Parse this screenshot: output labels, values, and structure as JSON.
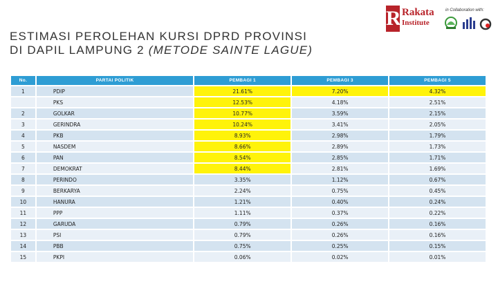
{
  "header": {
    "title_line1": "ESTIMASI PEROLEHAN KURSI DPRD PROVINSI",
    "title_line2": "DI DAPIL LAMPUNG 2",
    "title_method": "(METODE SAINTE LAGUE)",
    "logo_letter": "R",
    "logo_name": "Rakata",
    "logo_sub": "Institute",
    "collab_text": "in Collaboration with:"
  },
  "table": {
    "columns": [
      "No.",
      "PARTAI POLITIK",
      "PEMBAGI 1",
      "PEMBAGI 3",
      "PEMBAGI 5"
    ],
    "rows": [
      {
        "no": "1",
        "party": "PDIP",
        "p1": "21.61%",
        "p3": "7.20%",
        "p5": "4.32%"
      },
      {
        "no": "",
        "party": "PKS",
        "p1": "12.53%",
        "p3": "4.18%",
        "p5": "2.51%"
      },
      {
        "no": "2",
        "party": "GOLKAR",
        "p1": "10.77%",
        "p3": "3.59%",
        "p5": "2.15%"
      },
      {
        "no": "3",
        "party": "GERINDRA",
        "p1": "10.24%",
        "p3": "3.41%",
        "p5": "2.05%"
      },
      {
        "no": "4",
        "party": "PKB",
        "p1": "8.93%",
        "p3": "2.98%",
        "p5": "1.79%"
      },
      {
        "no": "5",
        "party": "NASDEM",
        "p1": "8.66%",
        "p3": "2.89%",
        "p5": "1.73%"
      },
      {
        "no": "6",
        "party": "PAN",
        "p1": "8.54%",
        "p3": "2.85%",
        "p5": "1.71%"
      },
      {
        "no": "7",
        "party": "DEMOKRAT",
        "p1": "8.44%",
        "p3": "2.81%",
        "p5": "1.69%"
      },
      {
        "no": "8",
        "party": "PERINDO",
        "p1": "3.35%",
        "p3": "1.12%",
        "p5": "0.67%"
      },
      {
        "no": "9",
        "party": "BERKARYA",
        "p1": "2.24%",
        "p3": "0.75%",
        "p5": "0.45%"
      },
      {
        "no": "10",
        "party": "HANURA",
        "p1": "1.21%",
        "p3": "0.40%",
        "p5": "0.24%"
      },
      {
        "no": "11",
        "party": "PPP",
        "p1": "1.11%",
        "p3": "0.37%",
        "p5": "0.22%"
      },
      {
        "no": "12",
        "party": "GARUDA",
        "p1": "0.79%",
        "p3": "0.26%",
        "p5": "0.16%"
      },
      {
        "no": "13",
        "party": "PSI",
        "p1": "0.79%",
        "p3": "0.26%",
        "p5": "0.16%"
      },
      {
        "no": "14",
        "party": "PBB",
        "p1": "0.75%",
        "p3": "0.25%",
        "p5": "0.15%"
      },
      {
        "no": "15",
        "party": "PKPI",
        "p1": "0.06%",
        "p3": "0.02%",
        "p5": "0.01%"
      }
    ],
    "highlight_color": "#fff30a",
    "header_color": "#2e9dd4"
  }
}
